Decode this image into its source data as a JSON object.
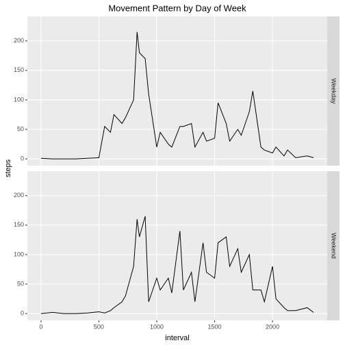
{
  "chart_data": {
    "type": "line",
    "title": "Movement Pattern by Day of Week",
    "x_label": "interval",
    "y_label": "steps",
    "x": [
      0,
      100,
      200,
      300,
      400,
      500,
      550,
      600,
      630,
      700,
      730,
      800,
      830,
      850,
      900,
      930,
      1000,
      1030,
      1100,
      1130,
      1200,
      1230,
      1300,
      1330,
      1400,
      1430,
      1500,
      1530,
      1600,
      1630,
      1700,
      1730,
      1800,
      1830,
      1900,
      1930,
      2000,
      2030,
      2100,
      2130,
      2200,
      2300,
      2355
    ],
    "series": [
      {
        "name": "Weekday",
        "color": "#000000",
        "values": [
          1,
          0,
          0,
          0,
          1,
          2,
          55,
          45,
          75,
          60,
          70,
          100,
          215,
          180,
          170,
          110,
          20,
          45,
          25,
          20,
          55,
          55,
          60,
          20,
          45,
          30,
          35,
          95,
          60,
          30,
          50,
          40,
          80,
          115,
          20,
          15,
          10,
          20,
          5,
          15,
          2,
          5,
          2
        ]
      },
      {
        "name": "Weekend",
        "color": "#000000",
        "values": [
          0,
          2,
          0,
          0,
          1,
          3,
          1,
          5,
          10,
          20,
          30,
          80,
          160,
          130,
          165,
          20,
          60,
          40,
          60,
          35,
          140,
          40,
          70,
          20,
          120,
          70,
          60,
          120,
          130,
          80,
          110,
          70,
          100,
          40,
          40,
          20,
          80,
          25,
          10,
          5,
          5,
          10,
          2
        ]
      }
    ],
    "xlim": [
      -117.75,
      2472.75
    ],
    "xticks": [
      0,
      500,
      1000,
      1500,
      2000
    ],
    "ylim": [
      -11.5,
      241.5
    ],
    "yticks": [
      0,
      50,
      100,
      150,
      200
    ],
    "grid": true
  }
}
